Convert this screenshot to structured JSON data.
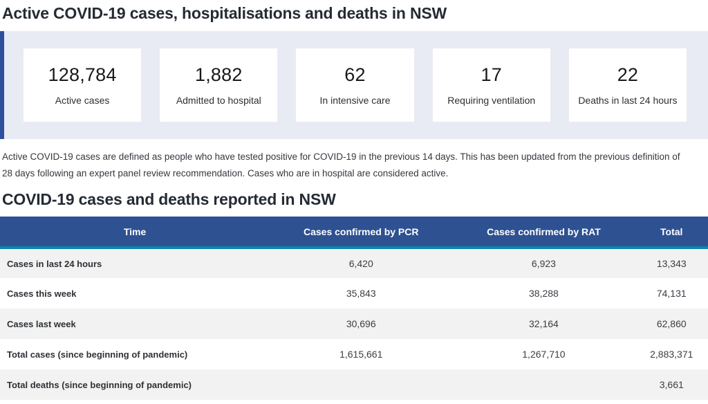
{
  "page": {
    "title": "Active COVID-19 cases, hospitalisations and deaths in NSW",
    "description": "Active COVID-19 cases are defined as people who have tested positive for COVID-19 in the previous 14 days. This has been updated from the previous definition of 28 days following an expert panel review recommendation. Cases who are in hospital are considered active.",
    "section_title": "COVID-19 cases and deaths reported in NSW"
  },
  "stats": [
    {
      "value": "128,784",
      "label": "Active cases"
    },
    {
      "value": "1,882",
      "label": "Admitted to hospital"
    },
    {
      "value": "62",
      "label": "In intensive care"
    },
    {
      "value": "17",
      "label": "Requiring ventilation"
    },
    {
      "value": "22",
      "label": "Deaths in last 24 hours"
    }
  ],
  "table": {
    "headers": [
      "Time",
      "Cases confirmed by PCR",
      "Cases confirmed by RAT",
      "Total"
    ],
    "rows": [
      {
        "label": "Cases in last 24 hours",
        "pcr": "6,420",
        "rat": "6,923",
        "total": "13,343"
      },
      {
        "label": "Cases this week",
        "pcr": "35,843",
        "rat": "38,288",
        "total": "74,131"
      },
      {
        "label": "Cases last week",
        "pcr": "30,696",
        "rat": "32,164",
        "total": "62,860"
      },
      {
        "label": "Total cases (since beginning of pandemic)",
        "pcr": "1,615,661",
        "rat": "1,267,710",
        "total": "2,883,371"
      },
      {
        "label": "Total deaths (since beginning of pandemic)",
        "pcr": "",
        "rat": "",
        "total": "3,661"
      }
    ]
  },
  "colors": {
    "accent_blue": "#2e5192",
    "teal_stripe": "#0f84ab",
    "band_bg": "#e8ebf3",
    "band_border": "#2d4f9c",
    "row_alt_bg": "#f1f2f1"
  }
}
